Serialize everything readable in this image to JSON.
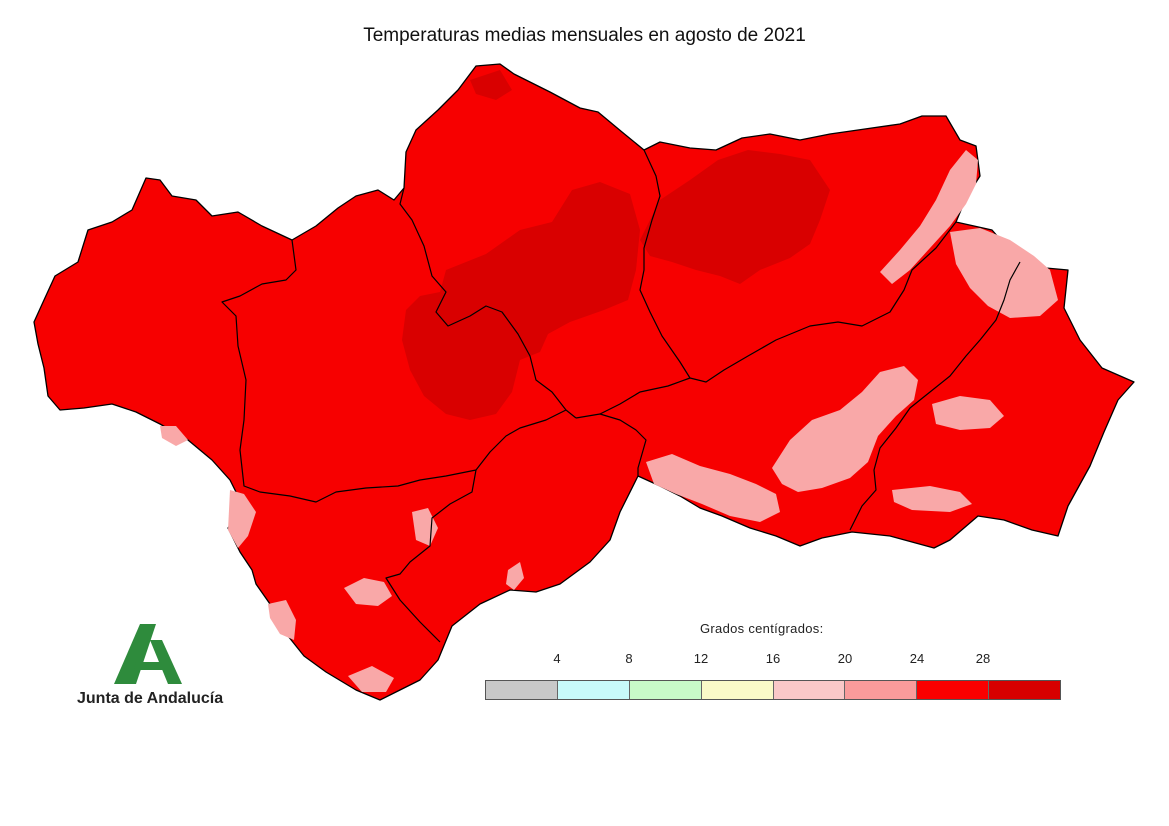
{
  "title": "Temperaturas medias mensuales en agosto de 2021",
  "legend": {
    "title": "Grados centígrados:",
    "ticks": [
      "4",
      "8",
      "12",
      "16",
      "20",
      "24",
      "28"
    ],
    "colors": [
      "#c8c8c8",
      "#c8fafa",
      "#c8fac8",
      "#fafac8",
      "#fac8c8",
      "#fa9b9b",
      "#fa0000",
      "#d70000"
    ]
  },
  "logo": {
    "text": "Junta de Andalucía",
    "icon": "junta-andalucia-logo"
  },
  "map_colors": {
    "base": "#f70000",
    "warm": "#d90000",
    "cool": "#f9a8a8",
    "border": "#000000"
  }
}
